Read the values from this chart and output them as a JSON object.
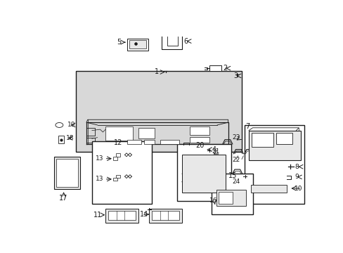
{
  "bg": "#ffffff",
  "dark": "#1a1a1a",
  "gray": "#aaaaaa",
  "light": "#e8e8e8",
  "dot_gray": "#d8d8d8",
  "fw": 4.89,
  "fh": 3.6,
  "dpi": 100
}
